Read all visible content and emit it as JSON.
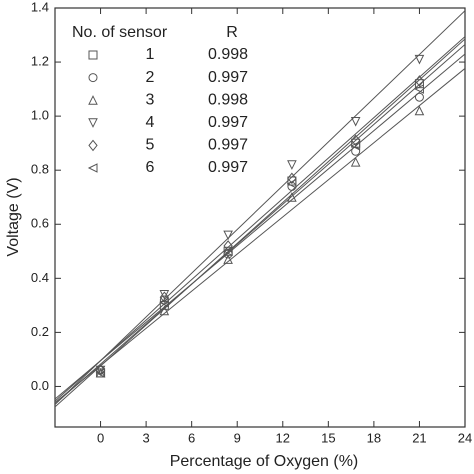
{
  "chart_data": {
    "type": "scatter",
    "x_label": "Percentage of Oxygen (%)",
    "y_label": "Voltage (V)",
    "legend_title": "No. of sensor",
    "legend_value_title": "R",
    "x": [
      0,
      4.2,
      8.4,
      12.6,
      16.8,
      21
    ],
    "series": [
      {
        "name": "1",
        "r": 0.998,
        "marker": "square",
        "color": "#555555",
        "values": [
          0.05,
          0.3,
          0.5,
          0.76,
          0.9,
          1.12
        ]
      },
      {
        "name": "2",
        "r": 0.997,
        "marker": "circle",
        "color": "#555555",
        "values": [
          0.06,
          0.32,
          0.49,
          0.74,
          0.87,
          1.07
        ]
      },
      {
        "name": "3",
        "r": 0.998,
        "marker": "triangle-up",
        "color": "#555555",
        "values": [
          0.05,
          0.28,
          0.47,
          0.7,
          0.83,
          1.02
        ]
      },
      {
        "name": "4",
        "r": 0.997,
        "marker": "triangle-down",
        "color": "#555555",
        "values": [
          0.06,
          0.34,
          0.56,
          0.82,
          0.98,
          1.21
        ]
      },
      {
        "name": "5",
        "r": 0.997,
        "marker": "diamond",
        "color": "#555555",
        "values": [
          0.06,
          0.33,
          0.52,
          0.77,
          0.91,
          1.13
        ]
      },
      {
        "name": "6",
        "r": 0.997,
        "marker": "triangle-left",
        "color": "#555555",
        "values": [
          0.05,
          0.31,
          0.5,
          0.75,
          0.89,
          1.1
        ]
      }
    ],
    "fit_lines": true,
    "xlim": [
      -3,
      24
    ],
    "xticks": [
      0,
      3,
      6,
      9,
      12,
      15,
      18,
      21,
      24
    ],
    "ylim": [
      -0.15,
      1.4
    ],
    "yticks": [
      {
        "value": 0,
        "label": "0.0"
      },
      0.2,
      0.4,
      0.6,
      0.8,
      {
        "value": 1,
        "label": "1.0"
      },
      1.2,
      1.4
    ]
  }
}
